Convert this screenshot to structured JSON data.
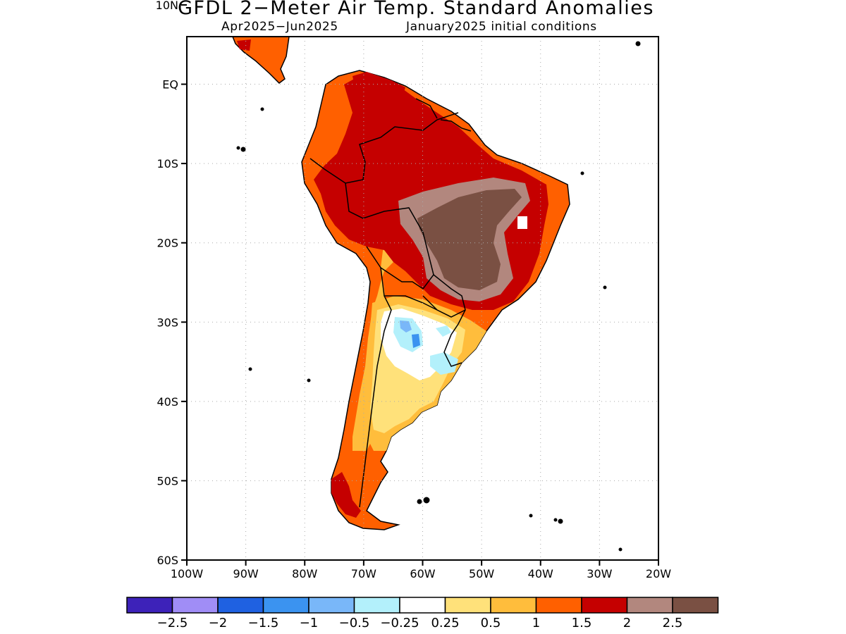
{
  "title": "GFDL 2−Meter Air Temp. Standard Anomalies",
  "subtitle_left": "Apr2025−Jun2025",
  "subtitle_right": "January2025 initial conditions",
  "map": {
    "lon_range": [
      -100,
      -20
    ],
    "lat_range": [
      -60,
      6
    ],
    "lon_ticks": [
      {
        "value": -100,
        "label": "100W"
      },
      {
        "value": -90,
        "label": "90W"
      },
      {
        "value": -80,
        "label": "80W"
      },
      {
        "value": -70,
        "label": "70W"
      },
      {
        "value": -60,
        "label": "60W"
      },
      {
        "value": -50,
        "label": "50W"
      },
      {
        "value": -40,
        "label": "40W"
      },
      {
        "value": -30,
        "label": "30W"
      },
      {
        "value": -20,
        "label": "20W"
      }
    ],
    "lat_ticks": [
      {
        "value": 10,
        "label": "10N"
      },
      {
        "value": 0,
        "label": "EQ"
      },
      {
        "value": -10,
        "label": "10S"
      },
      {
        "value": -20,
        "label": "20S"
      },
      {
        "value": -30,
        "label": "30S"
      },
      {
        "value": -40,
        "label": "40S"
      },
      {
        "value": -50,
        "label": "50S"
      },
      {
        "value": -60,
        "label": "60S"
      }
    ],
    "gridlines": "dotted"
  },
  "colorbar": {
    "colors": [
      "#3d22b9",
      "#a08df6",
      "#1f61e1",
      "#3b93f0",
      "#79b7f9",
      "#b3f0fb",
      "#ffffff",
      "#ffe17a",
      "#ffbd3c",
      "#ff6000",
      "#c50000",
      "#b2877e",
      "#7a5043"
    ],
    "labels": [
      "−2.5",
      "−2",
      "−1.5",
      "−1",
      "−0.5",
      "−0.25",
      "0.25",
      "0.5",
      "1",
      "1.5",
      "2",
      "2.5"
    ]
  },
  "legend_colors": {
    "orange": "#ff6000",
    "light_orange": "#ffbd3c",
    "yellow": "#ffe17a",
    "dark_red": "#c50000",
    "brown_light": "#b2877e",
    "brown_dark": "#7a5043",
    "light_blue": "#b3f0fb",
    "mid_blue": "#79b7f9",
    "blue": "#3b93f0"
  }
}
